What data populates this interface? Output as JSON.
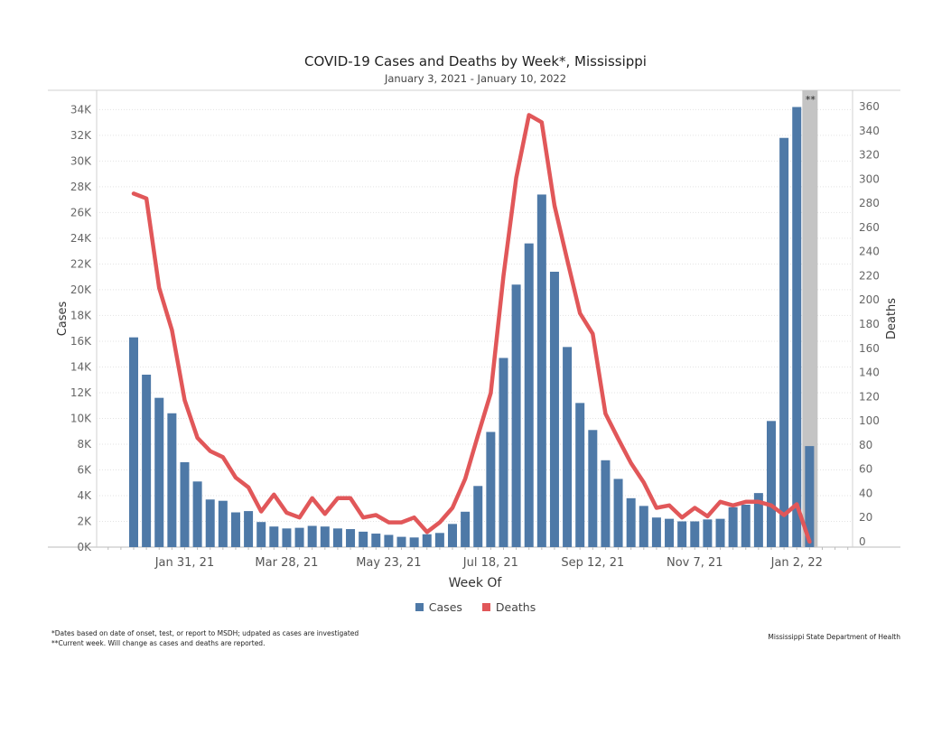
{
  "title": "COVID-19 Cases and Deaths by Week*, Mississippi",
  "subtitle": "January 3, 2021 - January 10, 2022",
  "footnotes": [
    "*Dates based on date of onset, test, or report to MSDH; udpated as cases are investigated",
    "**Current week. Will change as cases and deaths are reported."
  ],
  "source": "Mississippi State Department of Health",
  "colors": {
    "cases": "#4e79a7",
    "deaths": "#e15759",
    "current_week": "#c4c4c4"
  },
  "chart_data": {
    "type": "bar",
    "xlabel": "Week Of",
    "ylabel_left": "Cases",
    "ylabel_right": "Deaths",
    "ylim_left": [
      0,
      35500
    ],
    "ylim_right": [
      0,
      360
    ],
    "left_ticks": [
      0,
      2000,
      4000,
      6000,
      8000,
      10000,
      12000,
      14000,
      16000,
      18000,
      20000,
      22000,
      24000,
      26000,
      28000,
      30000,
      32000,
      34000
    ],
    "left_tick_labels": [
      "0K",
      "2K",
      "4K",
      "6K",
      "8K",
      "10K",
      "12K",
      "14K",
      "16K",
      "18K",
      "20K",
      "22K",
      "24K",
      "26K",
      "28K",
      "30K",
      "32K",
      "34K"
    ],
    "right_ticks": [
      0,
      20,
      40,
      60,
      80,
      100,
      120,
      140,
      160,
      180,
      200,
      220,
      240,
      260,
      280,
      300,
      320,
      340,
      360
    ],
    "x_tick_labels": [
      {
        "index": 4,
        "label": "Jan 31, 21"
      },
      {
        "index": 12,
        "label": "Mar 28, 21"
      },
      {
        "index": 20,
        "label": "May 23, 21"
      },
      {
        "index": 28,
        "label": "Jul 18, 21"
      },
      {
        "index": 36,
        "label": "Sep 12, 21"
      },
      {
        "index": 44,
        "label": "Nov 7, 21"
      },
      {
        "index": 52,
        "label": "Jan 2, 22"
      }
    ],
    "current_week_index": 53,
    "current_week_label": "**",
    "series": [
      {
        "name": "Cases",
        "type": "bar",
        "axis": "left",
        "values": [
          16300,
          13400,
          11600,
          10400,
          6600,
          5100,
          3700,
          3600,
          2700,
          2800,
          1950,
          1600,
          1450,
          1500,
          1650,
          1600,
          1450,
          1400,
          1200,
          1050,
          950,
          800,
          750,
          1000,
          1100,
          1800,
          2750,
          4750,
          8950,
          14700,
          20400,
          23600,
          27400,
          21400,
          15550,
          11200,
          9100,
          6750,
          5300,
          3800,
          3200,
          2300,
          2200,
          2000,
          2000,
          2150,
          2200,
          3100,
          3300,
          4200,
          9800,
          31800,
          34200,
          7850
        ]
      },
      {
        "name": "Deaths",
        "type": "line",
        "axis": "right",
        "values": [
          288,
          284,
          210,
          175,
          117,
          86,
          75,
          70,
          53,
          45,
          25,
          39,
          24,
          20,
          36,
          23,
          36,
          36,
          20,
          22,
          16,
          16,
          20,
          8,
          16,
          28,
          52,
          88,
          123,
          220,
          301,
          353,
          347,
          278,
          233,
          189,
          172,
          106,
          85,
          65,
          49,
          28,
          30,
          20,
          28,
          21,
          33,
          30,
          33,
          33,
          30,
          22,
          31,
          0
        ]
      }
    ],
    "legend": [
      "Cases",
      "Deaths"
    ]
  }
}
